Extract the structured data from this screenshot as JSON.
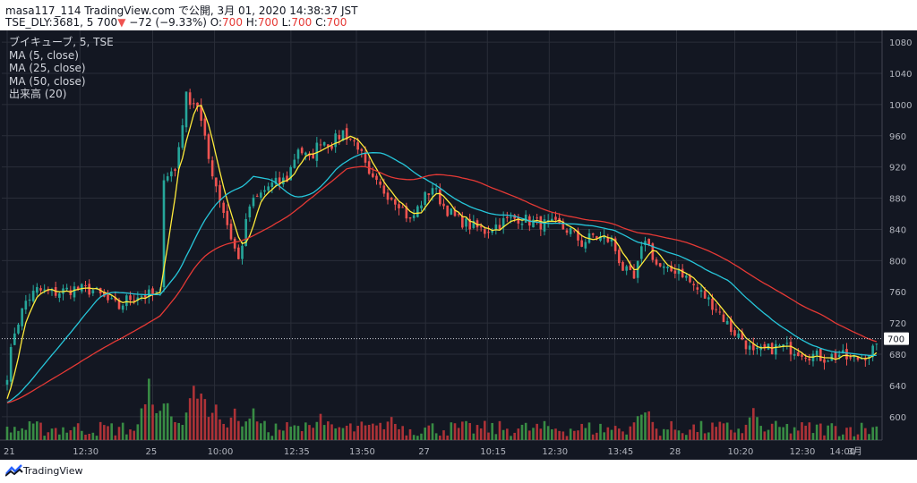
{
  "header": {
    "line1": "masa117_114 TradingView.com で公開, 3月 01, 2020 14:38:37 JST",
    "symbol": "TSE_DLY:3681, 5",
    "last": "700",
    "change": "−72 (−9.33%)",
    "o_label": "O:",
    "o_value": "700",
    "h_label": "H:",
    "h_value": "700",
    "l_label": "L:",
    "l_value": "700",
    "c_label": "C:",
    "c_value": "700"
  },
  "legend": {
    "title": "ブイキューブ, 5, TSE",
    "ma5": "MA (5, close)",
    "ma25": "MA (25, close)",
    "ma50": "MA (50, close)",
    "volume": "出来高 (20)"
  },
  "footer": {
    "brand": "TradingView"
  },
  "colors": {
    "background": "#131722",
    "grid": "#2a2e39",
    "up": "#26a69a",
    "down": "#ef5350",
    "vol_up": "#3fa14a",
    "vol_down": "#c9373b",
    "ma5": "#ffeb3b",
    "ma25": "#26c6da",
    "ma50": "#e53935",
    "axis_text": "#b2b5be",
    "price_tag_bg": "#ffffff",
    "price_tag_text": "#131722"
  },
  "chart_data": {
    "type": "candlestick",
    "ylim": [
      570,
      1095
    ],
    "y_ticks": [
      600,
      640,
      680,
      720,
      760,
      800,
      840,
      880,
      920,
      960,
      1000,
      1040,
      1080
    ],
    "x_ticks": [
      "21",
      "12:30",
      "25",
      "10:00",
      "12:35",
      "13:50",
      "27",
      "10:15",
      "12:30",
      "13:45",
      "28",
      "10:20",
      "12:30",
      "14:00",
      "3月"
    ],
    "last_price": "700",
    "last_price_value": 700,
    "price_anchors": [
      [
        0,
        655
      ],
      [
        2,
        710
      ],
      [
        5,
        748
      ],
      [
        8,
        762
      ],
      [
        12,
        758
      ],
      [
        18,
        764
      ],
      [
        23,
        762
      ],
      [
        27,
        748
      ],
      [
        30,
        740
      ],
      [
        32,
        750
      ],
      [
        35,
        756
      ],
      [
        38,
        756
      ],
      [
        41,
        757
      ],
      [
        42,
        910
      ],
      [
        45,
        915
      ],
      [
        48,
        1010
      ],
      [
        51,
        1000
      ],
      [
        54,
        930
      ],
      [
        57,
        880
      ],
      [
        60,
        830
      ],
      [
        62,
        800
      ],
      [
        65,
        870
      ],
      [
        70,
        895
      ],
      [
        75,
        905
      ],
      [
        78,
        945
      ],
      [
        81,
        928
      ],
      [
        84,
        955
      ],
      [
        87,
        950
      ],
      [
        90,
        965
      ],
      [
        94,
        948
      ],
      [
        97,
        905
      ],
      [
        100,
        893
      ],
      [
        105,
        875
      ],
      [
        108,
        850
      ],
      [
        111,
        875
      ],
      [
        114,
        895
      ],
      [
        117,
        870
      ],
      [
        120,
        855
      ],
      [
        124,
        845
      ],
      [
        128,
        838
      ],
      [
        133,
        850
      ],
      [
        137,
        855
      ],
      [
        142,
        848
      ],
      [
        147,
        845
      ],
      [
        151,
        838
      ],
      [
        154,
        822
      ],
      [
        157,
        832
      ],
      [
        162,
        825
      ],
      [
        165,
        790
      ],
      [
        168,
        775
      ],
      [
        171,
        830
      ],
      [
        174,
        795
      ],
      [
        177,
        785
      ],
      [
        180,
        790
      ],
      [
        183,
        772
      ],
      [
        186,
        758
      ],
      [
        190,
        740
      ],
      [
        194,
        712
      ],
      [
        197,
        700
      ],
      [
        200,
        680
      ],
      [
        203,
        685
      ],
      [
        207,
        690
      ],
      [
        211,
        686
      ],
      [
        215,
        680
      ],
      [
        219,
        675
      ],
      [
        223,
        680
      ],
      [
        226,
        672
      ],
      [
        229,
        676
      ],
      [
        232,
        686
      ]
    ],
    "ma_seed": 30,
    "series": [
      {
        "name": "MA (5, close)",
        "period": 5
      },
      {
        "name": "MA (25, close)",
        "period": 25
      },
      {
        "name": "MA (50, close)",
        "period": 50
      }
    ],
    "volume_peaks": [
      {
        "at": 38,
        "h": 0.9
      },
      {
        "at": 42,
        "h": 0.7
      },
      {
        "at": 50,
        "h": 0.85
      },
      {
        "at": 52,
        "h": 0.8
      },
      {
        "at": 56,
        "h": 0.55
      },
      {
        "at": 61,
        "h": 0.5
      },
      {
        "at": 66,
        "h": 0.45
      },
      {
        "at": 84,
        "h": 0.4
      },
      {
        "at": 103,
        "h": 0.35
      },
      {
        "at": 169,
        "h": 0.45
      },
      {
        "at": 171,
        "h": 0.55
      },
      {
        "at": 200,
        "h": 0.45
      }
    ]
  }
}
